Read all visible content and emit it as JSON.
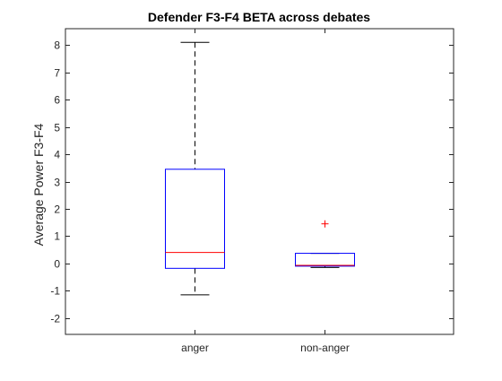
{
  "chart_data": {
    "type": "box",
    "title": "Defender F3-F4 BETA across debates",
    "xlabel": "",
    "ylabel": "Average Power F3-F4",
    "ylim": [
      -2.6,
      8.6
    ],
    "yticks": [
      -2,
      -1,
      0,
      1,
      2,
      3,
      4,
      5,
      6,
      7,
      8
    ],
    "categories": [
      "anger",
      "non-anger"
    ],
    "boxes": [
      {
        "category": "anger",
        "whisker_low": -1.15,
        "q1": -0.18,
        "median": 0.4,
        "q3": 3.45,
        "whisker_high": 8.1,
        "outliers": []
      },
      {
        "category": "non-anger",
        "whisker_low": -0.15,
        "q1": -0.1,
        "median": -0.07,
        "q3": 0.37,
        "whisker_high": 0.37,
        "outliers": [
          1.45
        ]
      }
    ],
    "grid": false,
    "colors": {
      "box": "#0000ff",
      "median": "#ff0000",
      "whisker": "#000000",
      "outlier": "#ff0000",
      "axes": "#262626"
    }
  }
}
